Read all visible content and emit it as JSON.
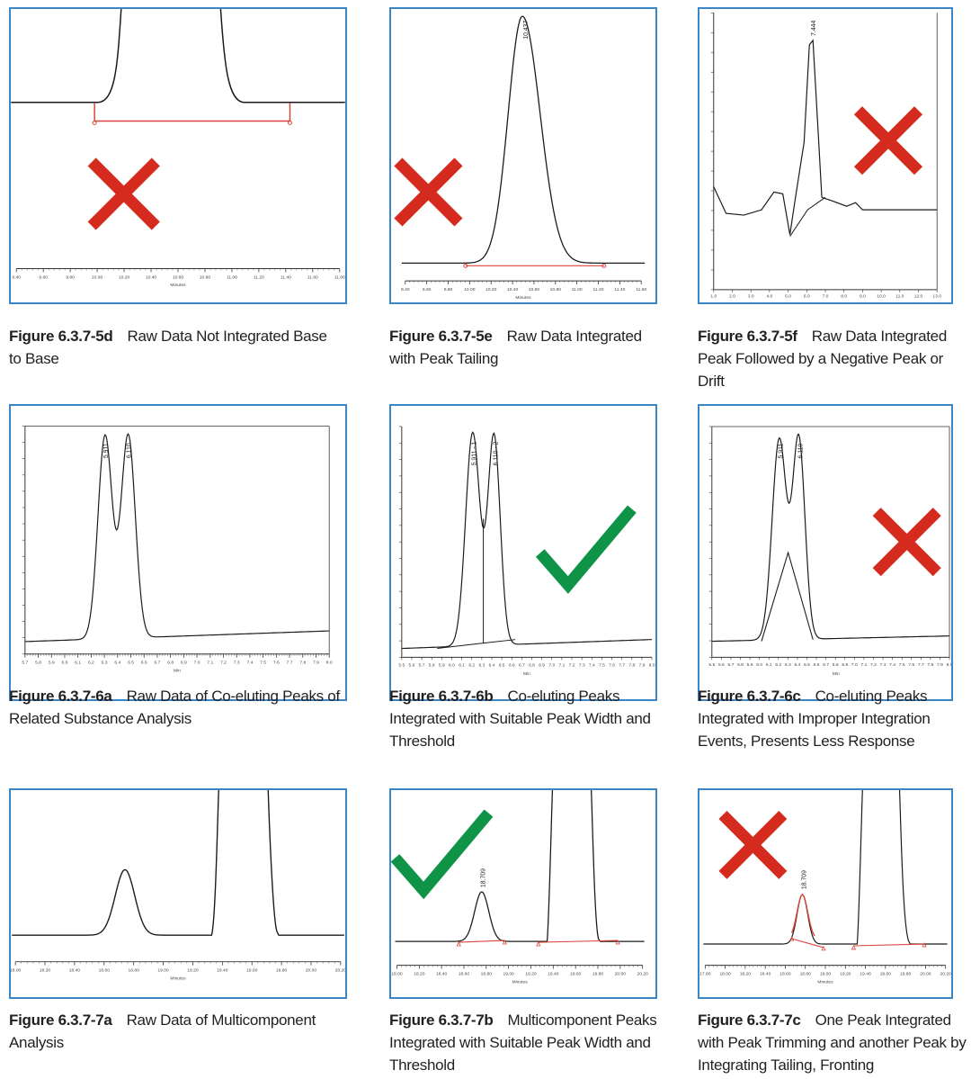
{
  "colors": {
    "frame": "#3b86c7",
    "trace": "#1a1a1a",
    "integration": "#d9463a",
    "cross": "#d52b1e",
    "check": "#0f9447"
  },
  "figures": [
    {
      "id": "5d",
      "caption_label": "Figure 6.3.7-5d",
      "caption_text": "Raw Data Not Integrated Base to Base",
      "mark": "cross",
      "chart_data": {
        "type": "line",
        "x_ticks": [
          "9.40",
          "9.60",
          "9.80",
          "10.00",
          "10.20",
          "10.40",
          "10.60",
          "10.80",
          "11.00",
          "11.20",
          "11.40",
          "11.60",
          "11.80"
        ],
        "xlabel": "Minutes",
        "peak_labels": []
      }
    },
    {
      "id": "5e",
      "caption_label": "Figure 6.3.7-5e",
      "caption_text": "Raw Data Integrated with Peak Tailing",
      "mark": "cross",
      "chart_data": {
        "type": "line",
        "x_ticks": [
          "9.40",
          "9.60",
          "9.80",
          "10.00",
          "10.20",
          "10.40",
          "10.60",
          "10.80",
          "11.00",
          "11.20",
          "11.40",
          "11.60"
        ],
        "xlabel": "Minutes",
        "peak_labels": [
          "10.437"
        ]
      }
    },
    {
      "id": "5f",
      "caption_label": "Figure 6.3.7-5f",
      "caption_text": "Raw Data Integrated Peak Followed by a Negative Peak or Drift",
      "mark": "cross",
      "chart_data": {
        "type": "line",
        "x_ticks": [
          "1.0",
          "2.0",
          "3.0",
          "4.0",
          "5.0",
          "6.0",
          "7.0",
          "8.0",
          "9.0",
          "10.0",
          "11.0",
          "12.0",
          "13.0"
        ],
        "xlabel": "",
        "peak_labels": [
          "7.444"
        ]
      }
    },
    {
      "id": "6a",
      "caption_label": "Figure 6.3.7-6a",
      "caption_text": "Raw Data of Co-eluting Peaks of Related Substance Analysis",
      "mark": "none",
      "chart_data": {
        "type": "line",
        "x_ticks": [
          "5.7",
          "5.8",
          "5.9",
          "6.0",
          "6.1",
          "6.2",
          "6.3",
          "6.4",
          "6.5",
          "6.6",
          "6.7",
          "6.8",
          "6.9",
          "7.0",
          "7.1",
          "7.2",
          "7.3",
          "7.4",
          "7.5",
          "7.6",
          "7.7",
          "7.8",
          "7.9",
          "8.0"
        ],
        "xlabel": "Min",
        "peak_labels": [
          "5.911",
          "6.110"
        ]
      }
    },
    {
      "id": "6b",
      "caption_label": "Figure 6.3.7-6b",
      "caption_text": "Co-eluting Peaks Integrated with Suitable Peak Width and Threshold",
      "mark": "check",
      "chart_data": {
        "type": "line",
        "x_ticks": [
          "5.5",
          "5.6",
          "5.7",
          "5.8",
          "5.9",
          "6.0",
          "6.1",
          "6.2",
          "6.3",
          "6.4",
          "6.5",
          "6.6",
          "6.7",
          "6.8",
          "6.9",
          "7.0",
          "7.1",
          "7.2",
          "7.3",
          "7.4",
          "7.5",
          "7.6",
          "7.7",
          "7.8",
          "7.9",
          "8.0"
        ],
        "xlabel": "Min",
        "peak_labels": [
          "5.911 - 1",
          "6.110 - 2"
        ]
      }
    },
    {
      "id": "6c",
      "caption_label": "Figure 6.3.7-6c",
      "caption_text": "Co-eluting Peaks Integrated with Improper Integration Events, Presents Less Response",
      "mark": "cross",
      "chart_data": {
        "type": "line",
        "x_ticks": [
          "5.5",
          "5.6",
          "5.7",
          "5.8",
          "5.9",
          "6.0",
          "6.1",
          "6.2",
          "6.3",
          "6.4",
          "6.5",
          "6.6",
          "6.7",
          "6.8",
          "6.9",
          "7.0",
          "7.1",
          "7.2",
          "7.3",
          "7.4",
          "7.5",
          "7.6",
          "7.7",
          "7.8",
          "7.9",
          "8.0"
        ],
        "xlabel": "Min",
        "peak_labels": [
          "5.911",
          "6.110"
        ]
      }
    },
    {
      "id": "7a",
      "caption_label": "Figure 6.3.7-7a",
      "caption_text": "Raw Data of Multicomponent Analysis",
      "mark": "none",
      "chart_data": {
        "type": "line",
        "x_ticks": [
          "18.00",
          "18.20",
          "18.40",
          "18.60",
          "18.80",
          "19.00",
          "19.20",
          "19.40",
          "19.60",
          "19.80",
          "20.00",
          "20.20"
        ],
        "xlabel": "Minutes",
        "peak_labels": []
      }
    },
    {
      "id": "7b",
      "caption_label": "Figure 6.3.7-7b",
      "caption_text": "Multicomponent Peaks Integrated with Suitable Peak Width and Threshold",
      "mark": "check",
      "chart_data": {
        "type": "line",
        "x_ticks": [
          "18.00",
          "18.20",
          "18.40",
          "18.60",
          "18.80",
          "19.00",
          "19.20",
          "19.40",
          "19.60",
          "19.80",
          "20.00",
          "20.20"
        ],
        "xlabel": "Minutes",
        "peak_labels": [
          "18.709"
        ]
      }
    },
    {
      "id": "7c",
      "caption_label": "Figure 6.3.7-7c",
      "caption_text": "One Peak Integrated with Peak Trimming and another Peak by Integrating Tailing, Fronting",
      "mark": "cross",
      "chart_data": {
        "type": "line",
        "x_ticks": [
          "17.80",
          "18.00",
          "18.20",
          "18.40",
          "18.60",
          "18.80",
          "19.00",
          "19.20",
          "19.40",
          "19.60",
          "19.80",
          "20.00",
          "20.20"
        ],
        "xlabel": "Minutes",
        "peak_labels": [
          "18.709"
        ]
      }
    }
  ]
}
